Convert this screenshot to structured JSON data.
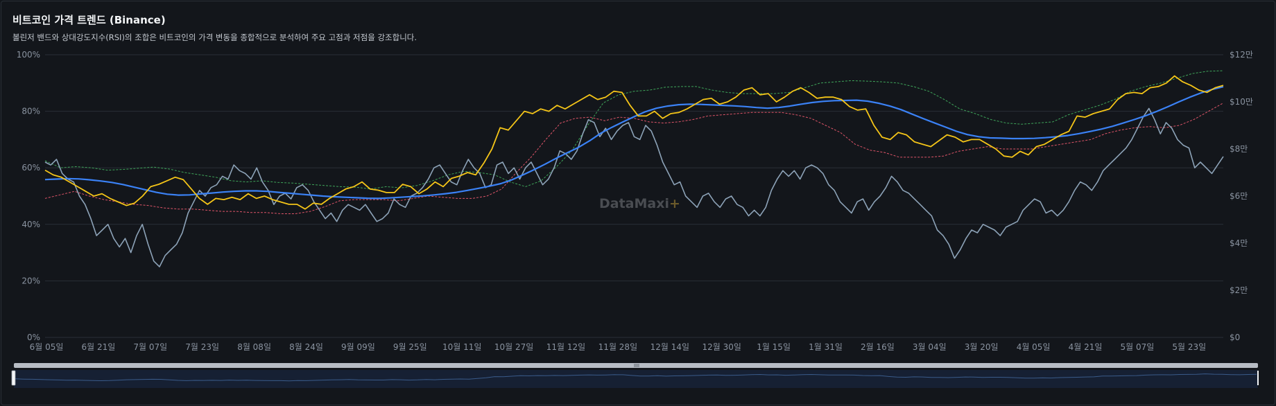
{
  "header": {
    "title": "비트코인 가격 트렌드 (Binance)",
    "subtitle": "볼린저 밴드와 상대강도지수(RSI)의 조합은 비트코인의 가격 변동을 종합적으로 분석하여 주요 고점과 저점을 강조합니다."
  },
  "watermark": {
    "text": "DataMaxi",
    "plus": "+"
  },
  "colors": {
    "background": "#13161b",
    "grid": "#2a2f37",
    "axis_text": "#8a93a0",
    "price": "#f5c518",
    "sma": "#3b82f6",
    "upper_band": "#3fa65a",
    "lower_band": "#e05569",
    "rsi": "#8da3b8"
  },
  "chart_data": {
    "type": "line",
    "left_axis": {
      "ticks": [
        "0%",
        "20%",
        "40%",
        "60%",
        "80%",
        "100%"
      ],
      "range": [
        0,
        100
      ]
    },
    "right_axis": {
      "ticks": [
        "$0",
        "$2만",
        "$4만",
        "$6만",
        "$8만",
        "$10만",
        "$12만"
      ],
      "range": [
        0,
        120000
      ]
    },
    "x_labels": [
      "6월 05일",
      "6월 21일",
      "7월 07일",
      "7월 23일",
      "8월 08일",
      "8월 24일",
      "9월 09일",
      "9월 25일",
      "10월 11일",
      "10월 27일",
      "11월 12일",
      "11월 28일",
      "12월 14일",
      "12월 30일",
      "1월 15일",
      "1월 31일",
      "2월 16일",
      "3월 04일",
      "3월 20일",
      "4월 05일",
      "4월 21일",
      "5월 07일",
      "5월 23일"
    ],
    "series_keys": [
      "price",
      "sma",
      "upper_band",
      "lower_band",
      "rsi"
    ],
    "price": [
      71000,
      69000,
      68000,
      66000,
      64000,
      62000,
      60000,
      61000,
      59000,
      57500,
      56000,
      57000,
      60000,
      64000,
      65000,
      66500,
      68000,
      67000,
      63000,
      59000,
      56500,
      59000,
      58500,
      59500,
      58500,
      61000,
      59000,
      60000,
      58500,
      57500,
      56500,
      56500,
      54500,
      57000,
      56500,
      59000,
      61000,
      63000,
      64000,
      66000,
      63000,
      62500,
      61500,
      61500,
      65000,
      64000,
      61000,
      63000,
      66000,
      64000,
      67500,
      68500,
      70000,
      69000,
      74000,
      80000,
      89000,
      88000,
      92000,
      96000,
      95000,
      97000,
      96000,
      98500,
      97000,
      99000,
      101000,
      103000,
      101000,
      102000,
      104500,
      104000,
      98500,
      94000,
      94000,
      96000,
      93000,
      95000,
      95500,
      97000,
      99000,
      101000,
      101500,
      99000,
      100000,
      102000,
      105000,
      106000,
      103000,
      103500,
      100000,
      102000,
      104500,
      106000,
      104000,
      101500,
      102000,
      102000,
      101000,
      98000,
      96500,
      97000,
      90000,
      85000,
      84000,
      87000,
      86000,
      83000,
      82000,
      81000,
      83500,
      86000,
      85000,
      83000,
      84000,
      84000,
      82000,
      80000,
      77000,
      76500,
      79000,
      77500,
      81000,
      82000,
      84000,
      86000,
      87500,
      94000,
      93500,
      95000,
      96000,
      97000,
      101000,
      103500,
      104000,
      103500,
      106000,
      106500,
      108000,
      111000,
      108500,
      107000,
      105000,
      104000,
      106000,
      107000
    ],
    "sma": [
      67000,
      67200,
      67400,
      67300,
      66900,
      66400,
      65800,
      64900,
      63800,
      62700,
      61600,
      60800,
      60400,
      60500,
      60900,
      61300,
      61700,
      62000,
      62200,
      62200,
      62000,
      61600,
      61200,
      60800,
      60400,
      60000,
      59700,
      59500,
      59300,
      59100,
      59000,
      59200,
      59500,
      59800,
      60100,
      60500,
      61000,
      61600,
      62400,
      63300,
      64200,
      65300,
      66900,
      69000,
      71200,
      73600,
      76100,
      78400,
      80700,
      83500,
      86700,
      89200,
      91500,
      93700,
      95800,
      97300,
      98200,
      98800,
      99000,
      98900,
      98700,
      98500,
      98300,
      98000,
      97600,
      97300,
      97600,
      98200,
      99000,
      99700,
      100200,
      100500,
      100600,
      100700,
      100300,
      99400,
      98200,
      96700,
      94800,
      92900,
      91100,
      89300,
      87500,
      86100,
      85200,
      84700,
      84600,
      84400,
      84400,
      84500,
      84800,
      85200,
      85700,
      86500,
      87400,
      88400,
      89600,
      91000,
      92500,
      94100,
      95900,
      97900,
      100000,
      102000,
      103800,
      105300,
      106400
    ],
    "upper_band": [
      75000,
      72000,
      72500,
      72000,
      71000,
      71300,
      71800,
      72300,
      71500,
      70000,
      69000,
      68000,
      66500,
      66000,
      66500,
      65800,
      65500,
      65000,
      64500,
      64000,
      63800,
      63000,
      64000,
      63500,
      64500,
      66500,
      69000,
      70500,
      70000,
      69000,
      66000,
      64000,
      66500,
      72500,
      79500,
      90000,
      99500,
      103000,
      104500,
      105000,
      106200,
      106500,
      106500,
      105000,
      104000,
      103500,
      103500,
      103500,
      104000,
      106000,
      108000,
      108500,
      109000,
      108800,
      108500,
      108000,
      106500,
      104500,
      101000,
      97000,
      95000,
      92500,
      91000,
      90500,
      91000,
      91500,
      94500,
      96500,
      98500,
      101000,
      104500,
      106500,
      108000,
      110000,
      112000,
      113000,
      113200
    ],
    "lower_band": [
      59000,
      60500,
      62000,
      60000,
      58500,
      57500,
      56500,
      56000,
      55000,
      54500,
      54500,
      54000,
      53500,
      53500,
      53000,
      53000,
      52500,
      52500,
      53500,
      55500,
      58000,
      58500,
      58500,
      58500,
      58000,
      59000,
      60000,
      59500,
      59000,
      59000,
      60000,
      63000,
      70000,
      76500,
      84000,
      91000,
      93000,
      93500,
      92000,
      93500,
      93000,
      91500,
      91000,
      91500,
      92500,
      94000,
      94500,
      95000,
      95500,
      95500,
      95500,
      94500,
      93000,
      90000,
      87000,
      82000,
      79500,
      78500,
      76500,
      76500,
      76500,
      77000,
      79000,
      80000,
      81000,
      80000,
      80000,
      80000,
      81000,
      82000,
      83000,
      84000,
      86500,
      88000,
      89000,
      89500,
      89000,
      90000,
      92500,
      96000,
      99500
    ],
    "rsi": [
      62,
      61,
      63,
      58,
      56,
      55,
      50,
      47,
      42,
      36,
      38,
      40,
      35,
      32,
      35,
      30,
      36,
      40,
      33,
      27,
      25,
      29,
      31,
      33,
      37,
      44,
      48,
      52,
      50,
      53,
      54,
      57,
      56,
      61,
      59,
      58,
      56,
      60,
      55,
      52,
      47,
      50,
      51,
      49,
      53,
      54,
      52,
      48,
      45,
      42,
      44,
      41,
      45,
      47,
      46,
      45,
      47,
      44,
      41,
      42,
      44,
      49,
      47,
      46,
      50,
      51,
      53,
      56,
      60,
      61,
      58,
      55,
      54,
      59,
      63,
      60,
      58,
      53,
      54,
      61,
      62,
      58,
      60,
      56,
      60,
      62,
      58,
      54,
      56,
      60,
      66,
      65,
      63,
      66,
      72,
      77,
      76,
      71,
      74,
      70,
      73,
      75,
      76,
      71,
      70,
      75,
      73,
      68,
      62,
      58,
      54,
      55,
      50,
      48,
      46,
      50,
      51,
      48,
      46,
      49,
      50,
      47,
      46,
      43,
      45,
      43,
      46,
      52,
      56,
      59,
      57,
      59,
      56,
      60,
      61,
      60,
      58,
      54,
      52,
      48,
      46,
      44,
      48,
      49,
      45,
      48,
      50,
      53,
      57,
      55,
      52,
      51,
      49,
      47,
      45,
      43,
      38,
      36,
      33,
      28,
      31,
      35,
      38,
      37,
      40,
      39,
      38,
      36,
      39,
      40,
      41,
      45,
      47,
      49,
      48,
      44,
      45,
      43,
      45,
      48,
      52,
      55,
      54,
      52,
      55,
      59,
      61,
      63,
      65,
      67,
      70,
      74,
      78,
      81,
      77,
      72,
      76,
      74,
      70,
      68,
      67,
      60,
      62,
      60,
      58,
      61,
      64
    ]
  }
}
